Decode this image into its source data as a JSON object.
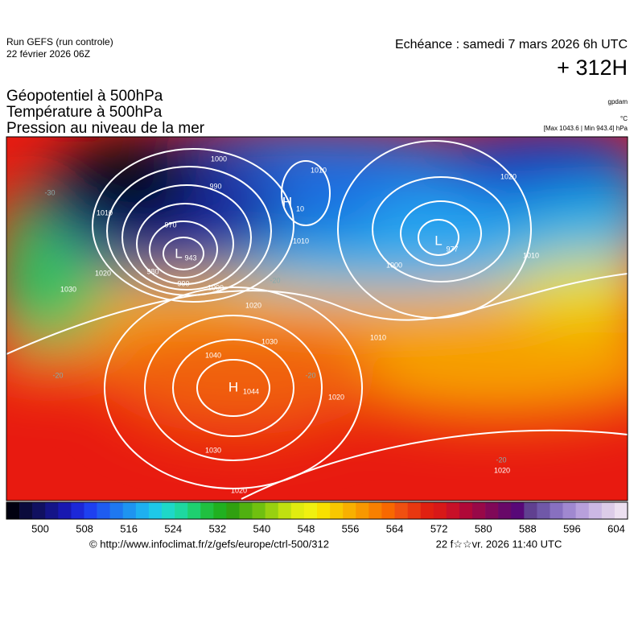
{
  "header": {
    "run": "Run GEFS (run controle)",
    "date": "22 février 2026 06Z",
    "echeance": "Echéance : samedi 7 mars 2026 6h UTC",
    "lead": "+ 312H"
  },
  "titles": [
    "Géopotentiel à 500hPa",
    "Température à 500hPa",
    "Pression au niveau de la mer"
  ],
  "units": {
    "geopotential": "gpdam",
    "temperature": "°C",
    "pressure": "[Max 1043.6 | Min 943.4] hPa"
  },
  "map": {
    "labels": [
      "H",
      "1044",
      "L",
      "943",
      "L",
      "977",
      "H",
      "10",
      "1000",
      "990",
      "970",
      "980",
      "990",
      "1000",
      "1010",
      "1020",
      "1030",
      "1040",
      "1030",
      "1020",
      "1020",
      "1010",
      "1010",
      "1010",
      "1020",
      "1010",
      "1000",
      "1020",
      "1020",
      "1030",
      "-30",
      "-20",
      "-20",
      "-20",
      "-20"
    ]
  },
  "colorbar": {
    "ticks": [
      500,
      508,
      516,
      524,
      532,
      540,
      548,
      556,
      564,
      572,
      580,
      588,
      596,
      604
    ]
  },
  "footer": {
    "url": "© http://www.infoclimat.fr/z/gefs/europe/ctrl-500/312",
    "timestamp": "22 f☆☆vr. 2026 11:40 UTC"
  }
}
